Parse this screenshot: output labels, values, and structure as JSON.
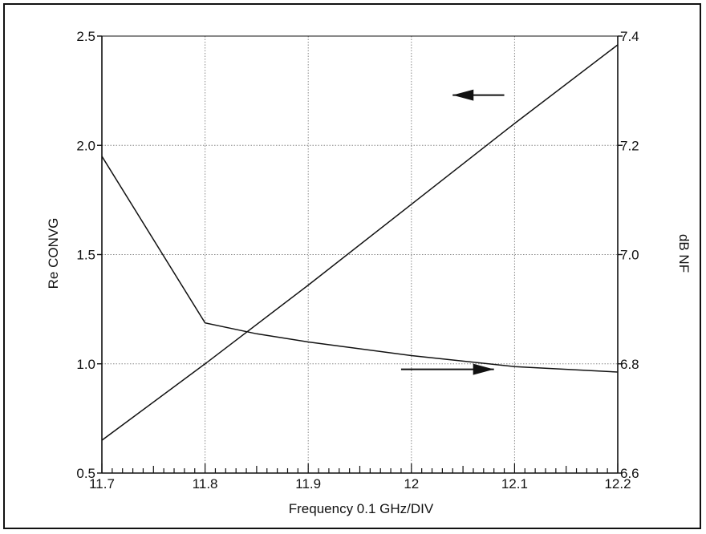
{
  "chart_data": {
    "type": "line",
    "xlabel": "Frequency 0.1 GHz/DIV",
    "ylabel": "Re CONVG",
    "y2label": "dB NF",
    "xlim": [
      11.7,
      12.2
    ],
    "ylim": [
      0.5,
      2.5
    ],
    "y2lim": [
      6.6,
      7.4
    ],
    "x_ticks": [
      "11.7",
      "11.8",
      "11.9",
      "12",
      "12.1",
      "12.2"
    ],
    "y_ticks": [
      "0.5",
      "1.0",
      "1.5",
      "2.0",
      "2.5"
    ],
    "y2_ticks": [
      "6.6",
      "6.8",
      "7.0",
      "7.2",
      "7.4"
    ],
    "grid": true,
    "colors": {
      "line": "#111111",
      "grid": "#888888"
    },
    "series": [
      {
        "axis": "left",
        "x": [
          11.7,
          11.8,
          11.9,
          12.0,
          12.1,
          12.2
        ],
        "y": [
          0.65,
          1.0,
          1.36,
          1.73,
          2.1,
          2.46
        ]
      },
      {
        "axis": "right",
        "x": [
          11.7,
          11.8,
          11.85,
          11.9,
          12.0,
          12.1,
          12.2
        ],
        "y": [
          7.18,
          6.875,
          6.855,
          6.84,
          6.815,
          6.795,
          6.785
        ]
      }
    ],
    "annotations": [
      {
        "type": "arrow",
        "direction": "left",
        "points_to": "left-axis",
        "x": [
          12.04,
          12.09
        ],
        "y": 2.23
      },
      {
        "type": "arrow",
        "direction": "right",
        "points_to": "right-axis",
        "x": [
          11.99,
          12.08
        ],
        "y": 6.79
      }
    ]
  }
}
